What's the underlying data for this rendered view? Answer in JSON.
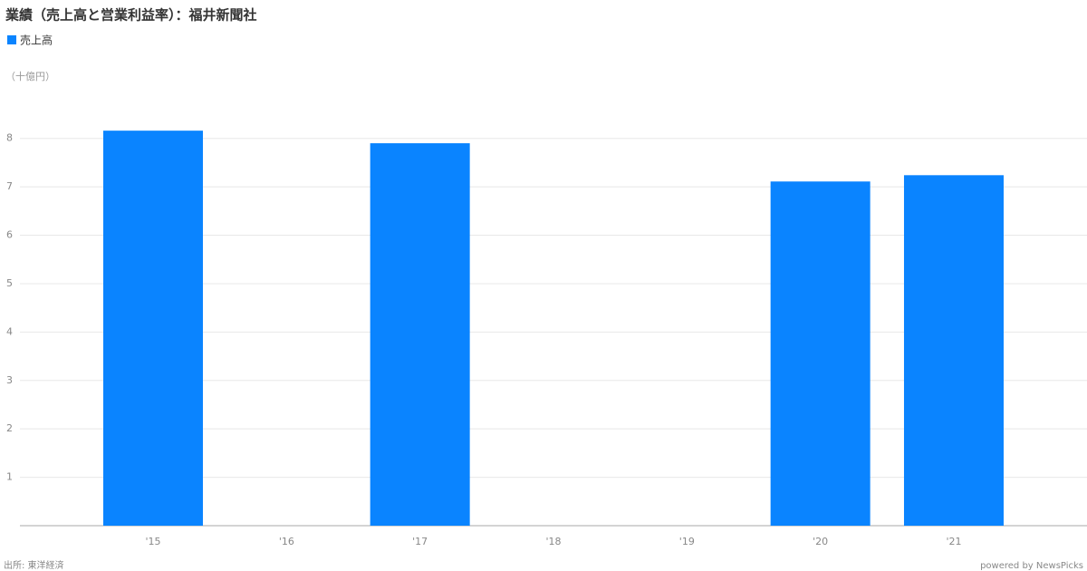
{
  "chart_data": {
    "type": "bar",
    "title": "業績（売上高と営業利益率）：福井新聞社",
    "unit_label": "（十億円）",
    "categories": [
      "'15",
      "'16",
      "'17",
      "'18",
      "'19",
      "'20",
      "'21"
    ],
    "series": [
      {
        "name": "売上高",
        "color": "#0a84ff",
        "values": [
          8.16,
          null,
          7.9,
          null,
          null,
          7.11,
          7.24
        ]
      }
    ],
    "ylim": [
      0,
      8.5
    ],
    "yticks": [
      1,
      2,
      3,
      4,
      5,
      6,
      7,
      8
    ],
    "grid": true,
    "source": "出所: 東洋経済",
    "credit": "powered by NewsPicks"
  }
}
